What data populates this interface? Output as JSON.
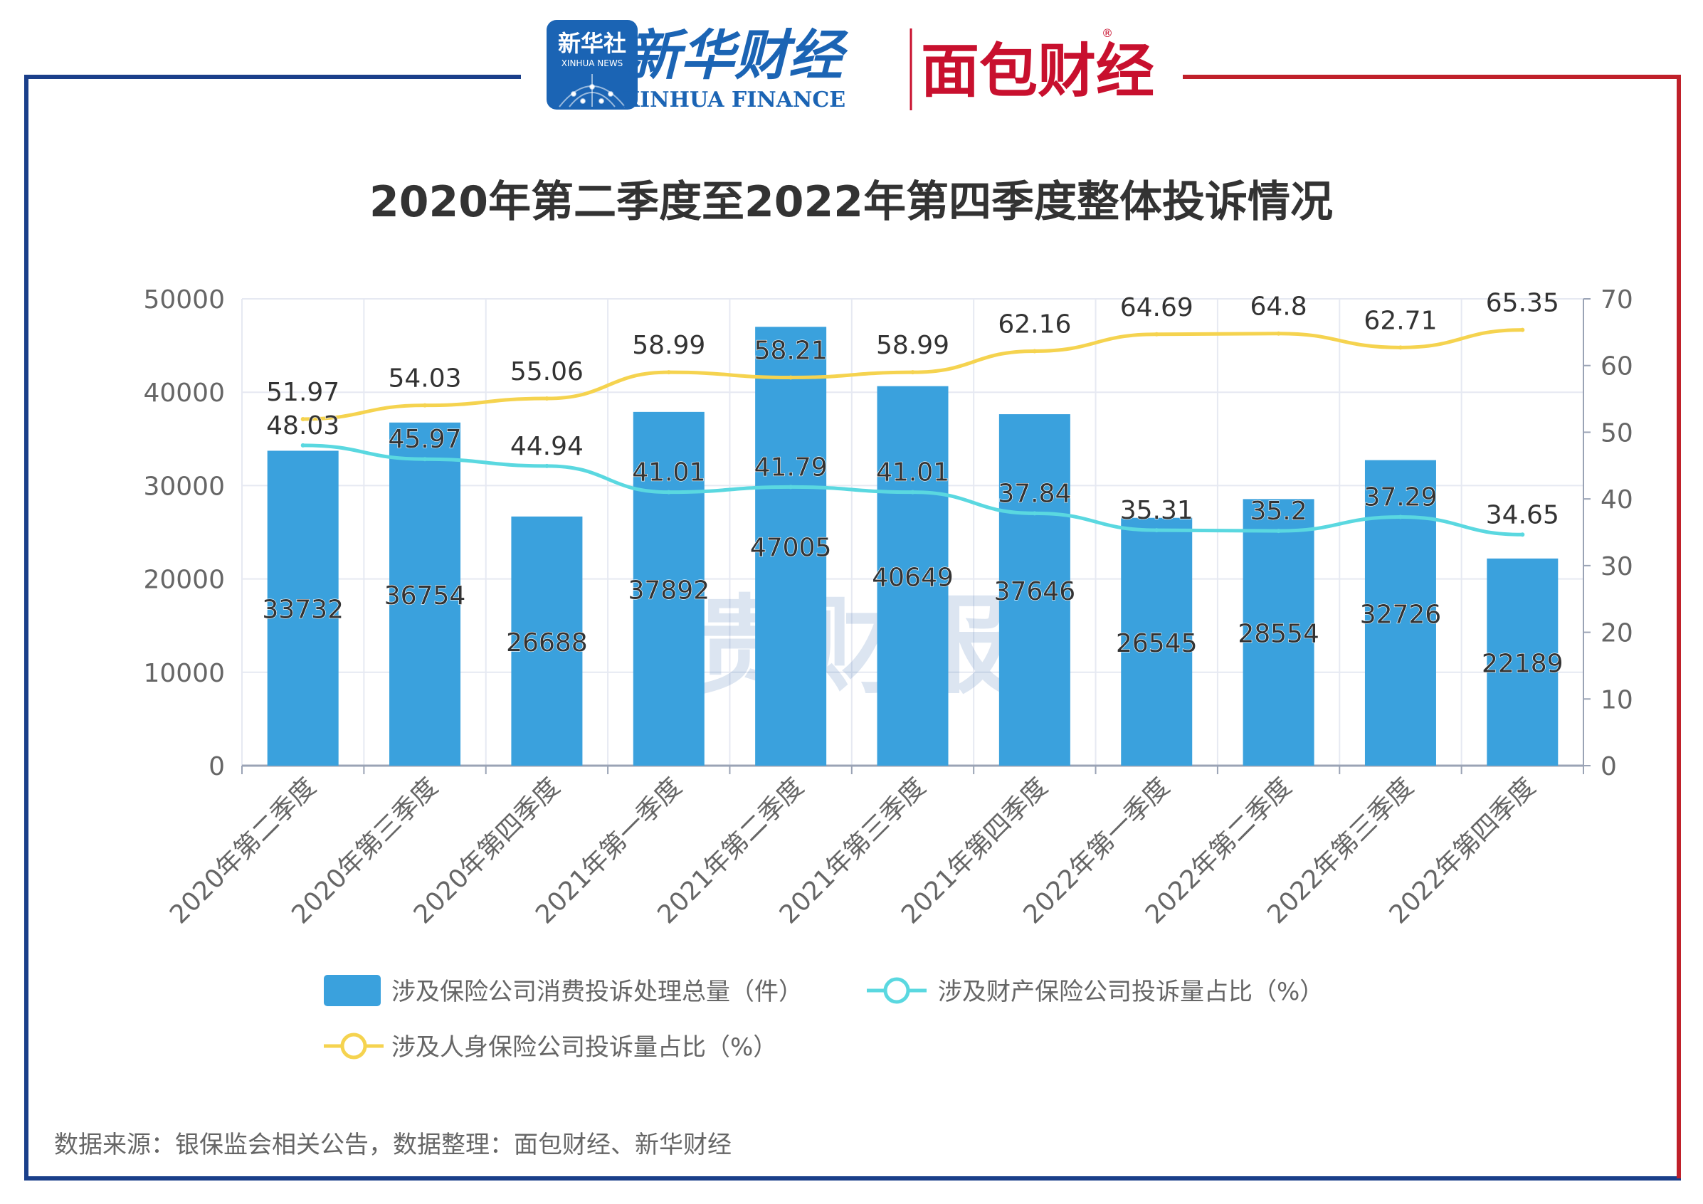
{
  "header": {
    "xinhua_badge_top": "新华社",
    "xinhua_badge_bottom": "XINHUA NEWS",
    "xinhua_finance_cn": "新华财经",
    "xinhua_finance_en": "XINHUA FINANCE",
    "mianbao_logo": "面包财经",
    "mianbao_registered": "®"
  },
  "colors": {
    "frame_left": "#1a3f8a",
    "frame_right": "#c0202a",
    "bar": "#3aa1dd",
    "property_line": "#5ad8e0",
    "life_line": "#f5d34f",
    "axis_text": "#666666",
    "label_text": "#333333",
    "title_text": "#333333",
    "grid": "#e6e9f2",
    "xinhua_blue": "#1b64b4",
    "mianbao_red": "#c8102e",
    "watermark": "#3e6fb4"
  },
  "watermark": "贵财报",
  "source": "数据来源：银保监会相关公告，数据整理：面包财经、新华财经",
  "chart_data": {
    "type": "bar",
    "title": "2020年第二季度至2022年第四季度整体投诉情况",
    "categories": [
      "2020年第二季度",
      "2020年第三季度",
      "2020年第四季度",
      "2021年第一季度",
      "2021年第二季度",
      "2021年第三季度",
      "2021年第四季度",
      "2022年第一季度",
      "2022年第二季度",
      "2022年第三季度",
      "2022年第四季度"
    ],
    "ylim_left": [
      0,
      50000
    ],
    "yticks_left": [
      0,
      10000,
      20000,
      30000,
      40000,
      50000
    ],
    "ylim_right": [
      0,
      70
    ],
    "yticks_right": [
      0,
      10,
      20,
      30,
      40,
      50,
      60,
      70
    ],
    "grid": true,
    "legend_position": "bottom-left",
    "series": [
      {
        "name": "涉及保险公司消费投诉处理总量（件）",
        "type": "bar",
        "axis": "left",
        "values": [
          33732,
          36754,
          26688,
          37892,
          47005,
          40649,
          37646,
          26545,
          28554,
          32726,
          22189
        ],
        "labels": [
          "33732",
          "36754",
          "26688",
          "37892",
          "47005",
          "40649",
          "37646",
          "26545",
          "28554",
          "32726",
          "22189"
        ]
      },
      {
        "name": "涉及财产保险公司投诉量占比（%）",
        "type": "line",
        "axis": "right",
        "values": [
          48.03,
          45.97,
          44.94,
          41.01,
          41.79,
          41.01,
          37.84,
          35.31,
          35.2,
          37.29,
          34.65
        ],
        "labels": [
          "48.03",
          "45.97",
          "44.94",
          "41.01",
          "41.79",
          "41.01",
          "37.84",
          "35.31",
          "35.2",
          "37.29",
          "34.65"
        ]
      },
      {
        "name": "涉及人身保险公司投诉量占比（%）",
        "type": "line",
        "axis": "right",
        "values": [
          51.97,
          54.03,
          55.06,
          58.99,
          58.21,
          58.99,
          62.16,
          64.69,
          64.8,
          62.71,
          65.35
        ],
        "labels": [
          "51.97",
          "54.03",
          "55.06",
          "58.99",
          "58.21",
          "58.99",
          "62.16",
          "64.69",
          "64.8",
          "62.71",
          "65.35"
        ]
      }
    ]
  }
}
